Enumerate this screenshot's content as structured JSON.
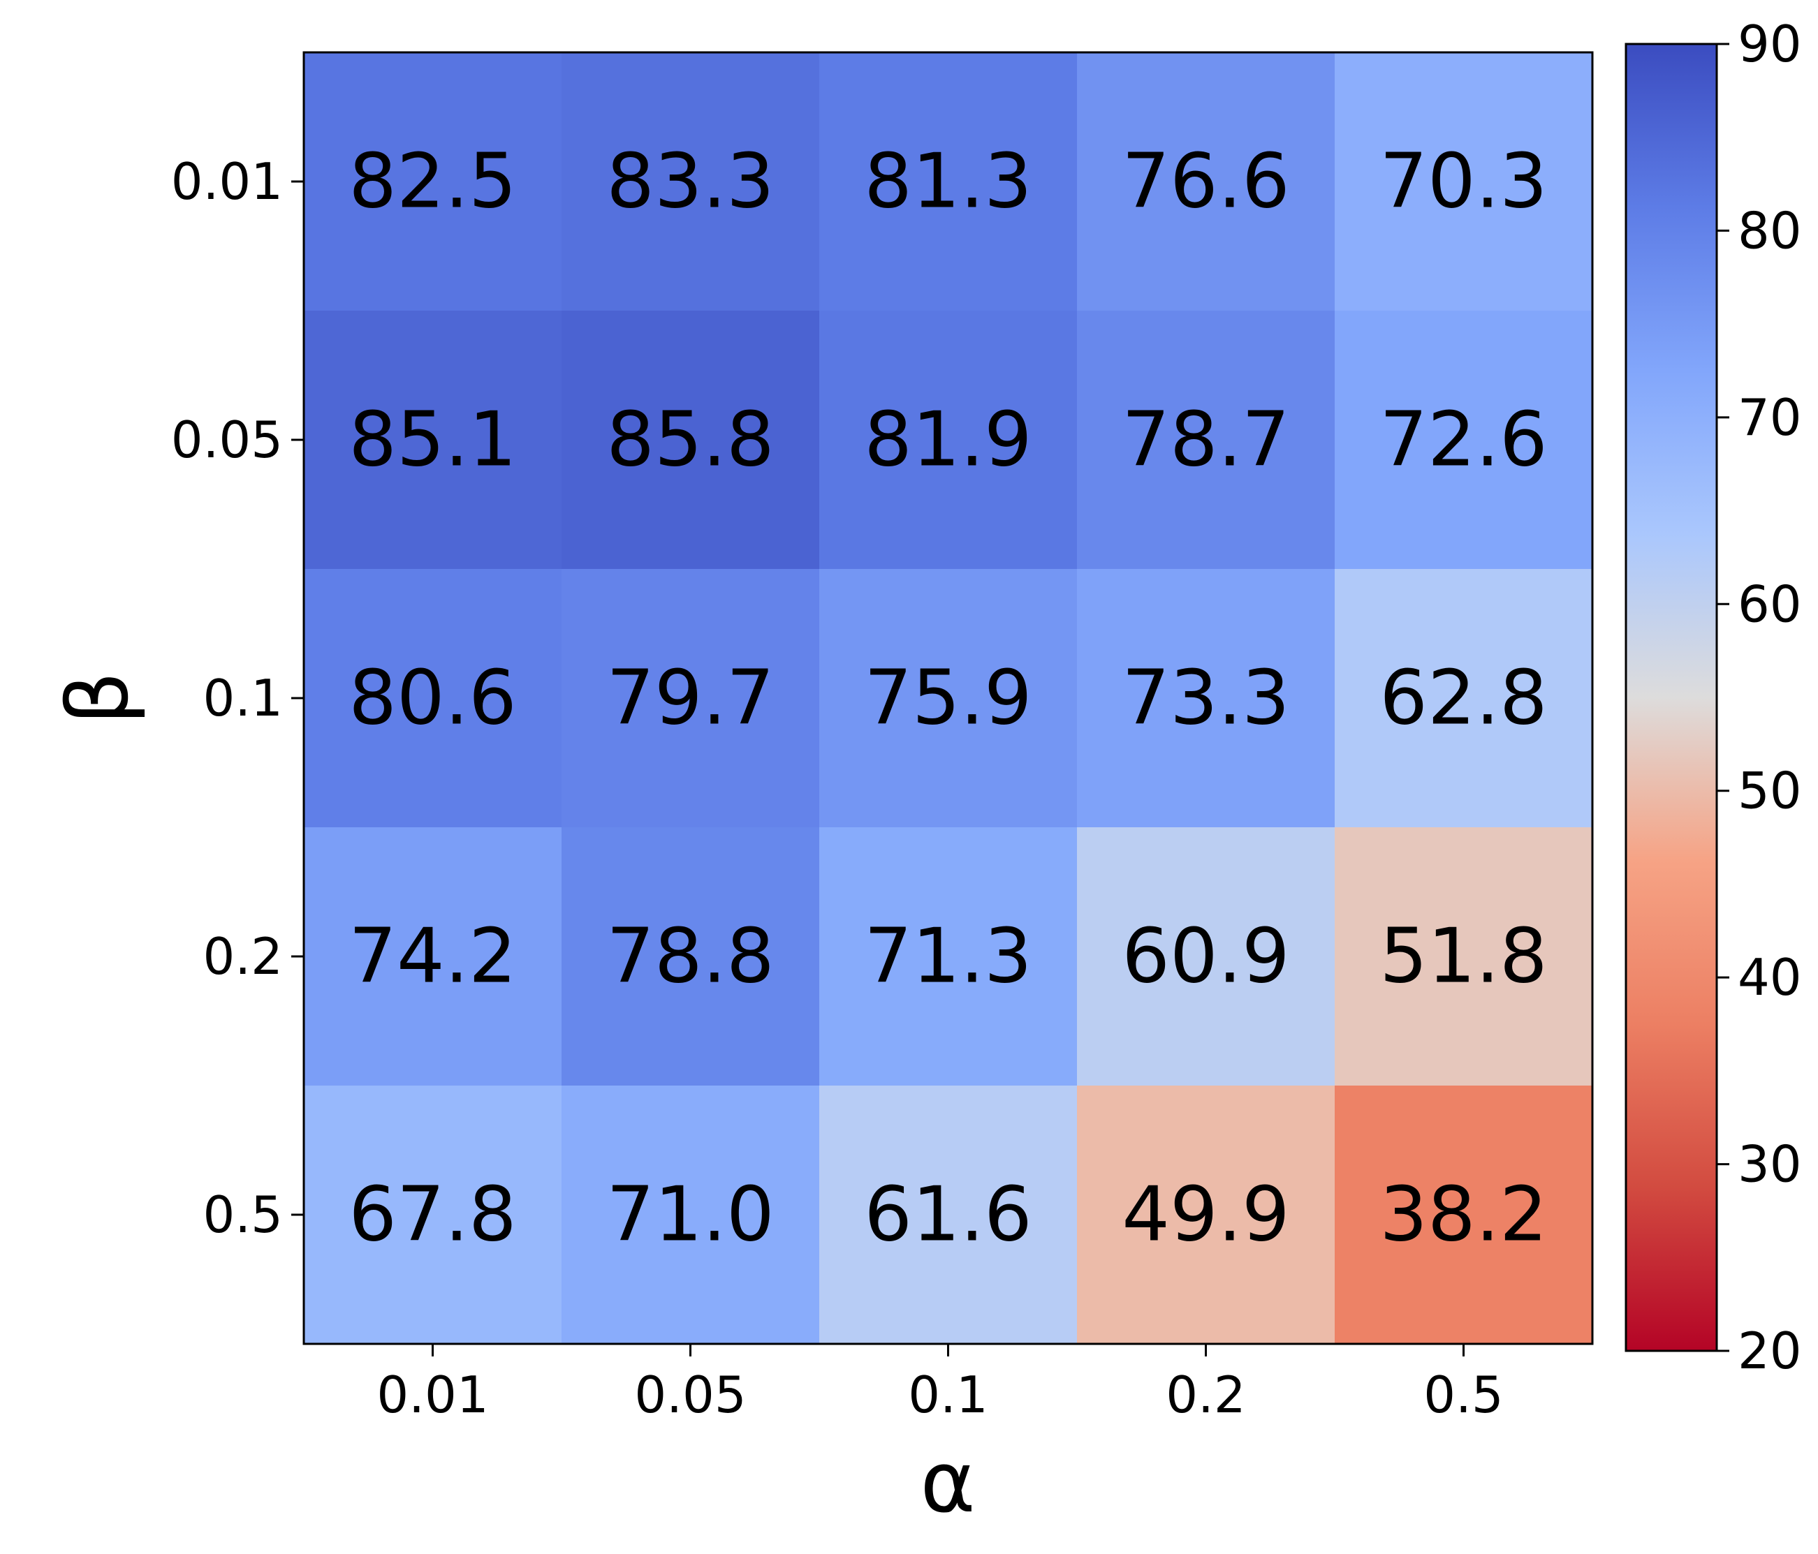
{
  "chart_data": {
    "type": "heatmap",
    "title": "",
    "xlabel": "α",
    "ylabel": "β",
    "x_categories": [
      "0.01",
      "0.05",
      "0.1",
      "0.2",
      "0.5"
    ],
    "y_categories": [
      "0.01",
      "0.05",
      "0.1",
      "0.2",
      "0.5"
    ],
    "values": [
      [
        82.5,
        83.3,
        81.3,
        76.6,
        70.3
      ],
      [
        85.1,
        85.8,
        81.9,
        78.7,
        72.6
      ],
      [
        80.6,
        79.7,
        75.9,
        73.3,
        62.8
      ],
      [
        74.2,
        78.8,
        71.3,
        60.9,
        51.8
      ],
      [
        67.8,
        71.0,
        61.6,
        49.9,
        38.2
      ]
    ],
    "cell_labels": [
      [
        "82.5",
        "83.3",
        "81.3",
        "76.6",
        "70.3"
      ],
      [
        "85.1",
        "85.8",
        "81.9",
        "78.7",
        "72.6"
      ],
      [
        "80.6",
        "79.7",
        "75.9",
        "73.3",
        "62.8"
      ],
      [
        "74.2",
        "78.8",
        "71.3",
        "60.9",
        "51.8"
      ],
      [
        "67.8",
        "71.0",
        "61.6",
        "49.9",
        "38.2"
      ]
    ],
    "colorbar": {
      "colormap": "coolwarm_r",
      "vmin": 20,
      "vmax": 90,
      "ticks": [
        "20",
        "30",
        "40",
        "50",
        "60",
        "70",
        "80",
        "90"
      ]
    },
    "grid": false,
    "legend": "colorbar-right"
  }
}
